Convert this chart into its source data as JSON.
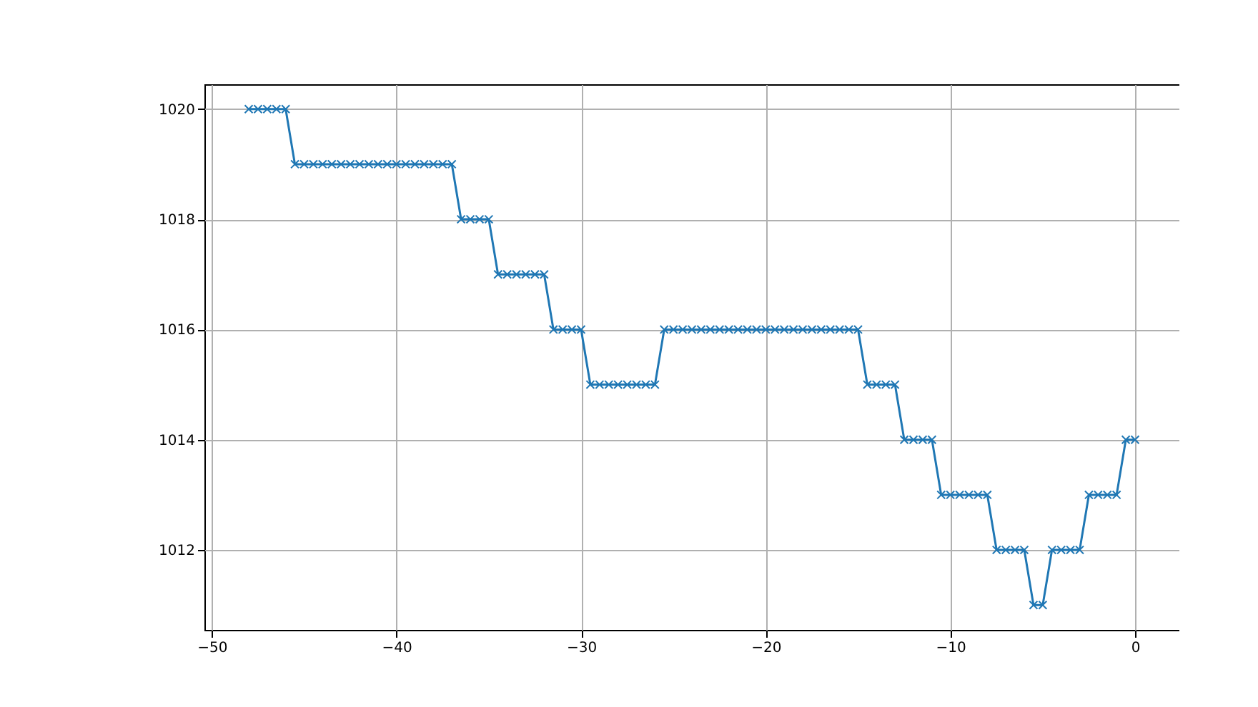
{
  "chart_data": {
    "type": "line",
    "x": [
      -48,
      -47.5,
      -47,
      -46.5,
      -46,
      -45.5,
      -45,
      -44.5,
      -44,
      -43.5,
      -43,
      -42.5,
      -42,
      -41.5,
      -41,
      -40.5,
      -40,
      -39.5,
      -39,
      -38.5,
      -38,
      -37.5,
      -37,
      -36.5,
      -36,
      -35.5,
      -35,
      -34.5,
      -34,
      -33.5,
      -33,
      -32.5,
      -32,
      -31.5,
      -31,
      -30.5,
      -30,
      -29.5,
      -29,
      -28.5,
      -28,
      -27.5,
      -27,
      -26.5,
      -26,
      -25.5,
      -25,
      -24.5,
      -24,
      -23.5,
      -23,
      -22.5,
      -22,
      -21.5,
      -21,
      -20.5,
      -20,
      -19.5,
      -19,
      -18.5,
      -18,
      -17.5,
      -17,
      -16.5,
      -16,
      -15.5,
      -15,
      -14.5,
      -14,
      -13.5,
      -13,
      -12.5,
      -12,
      -11.5,
      -11,
      -10.5,
      -10,
      -9.5,
      -9,
      -8.5,
      -8,
      -7.5,
      -7,
      -6.5,
      -6,
      -5.5,
      -5,
      -4.5,
      -4,
      -3.5,
      -3,
      -2.5,
      -2,
      -1.5,
      -1,
      -0.5,
      0
    ],
    "series": [
      {
        "color": "#1f77b4",
        "values": [
          1020,
          1020,
          1020,
          1020,
          1020,
          1019,
          1019,
          1019,
          1019,
          1019,
          1019,
          1019,
          1019,
          1019,
          1019,
          1019,
          1019,
          1019,
          1019,
          1019,
          1019,
          1019,
          1019,
          1018,
          1018,
          1018,
          1018,
          1017,
          1017,
          1017,
          1017,
          1017,
          1017,
          1016,
          1016,
          1016,
          1016,
          1015,
          1015,
          1015,
          1015,
          1015,
          1015,
          1015,
          1015,
          1016,
          1016,
          1016,
          1016,
          1016,
          1016,
          1016,
          1016,
          1016,
          1016,
          1016,
          1016,
          1016,
          1016,
          1016,
          1016,
          1016,
          1016,
          1016,
          1016,
          1016,
          1016,
          1015,
          1015,
          1015,
          1015,
          1014,
          1014,
          1014,
          1014,
          1013,
          1013,
          1013,
          1013,
          1013,
          1013,
          1012,
          1012,
          1012,
          1012,
          1011,
          1011,
          1012,
          1012,
          1012,
          1012,
          1013,
          1013,
          1013,
          1013,
          1014,
          1014
        ]
      }
    ],
    "xlim": [
      -50.4,
      2.4
    ],
    "xticks": [
      -50,
      -40,
      -30,
      -20,
      -10,
      0
    ],
    "ylim": [
      1010.55,
      1020.45
    ],
    "yticks": [
      1012,
      1014,
      1016,
      1018,
      1020
    ],
    "grid": true,
    "marker": "cross",
    "line_style": "solid"
  }
}
